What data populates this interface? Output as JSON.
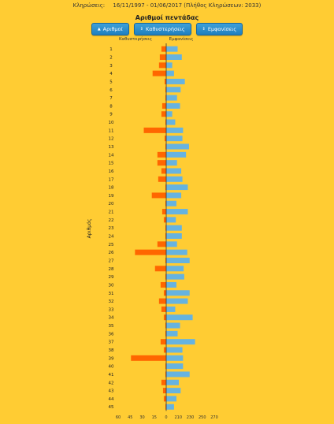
{
  "header": {
    "label": "Κληρώσεις:",
    "range": "16/11/1997 - 01/06/2017",
    "count_text": "(Πλήθος Κληρώσεων: 2033)"
  },
  "title": "Αριθμοί πεντάδας",
  "buttons": [
    {
      "label": "Αριθμοί",
      "icon": "sort-up-icon"
    },
    {
      "label": "Καθυστερήσεις",
      "icon": "sort-icon"
    },
    {
      "label": "Εμφανίσεις",
      "icon": "sort-icon"
    }
  ],
  "colors": {
    "delay": "#ff6600",
    "appear": "#66b3e0",
    "background": "#ffcc33"
  },
  "chart_data": {
    "type": "bar",
    "orientation": "horizontal-butterfly",
    "left_caption": "Καθυστερήσεις",
    "right_caption": "Εμφανίσεις",
    "ylabel": "Αριθμός",
    "x_ticks": [
      "60",
      "45",
      "30",
      "15",
      "0",
      "210",
      "230",
      "250",
      "270"
    ],
    "left_range": [
      0,
      60
    ],
    "right_range": [
      190,
      270
    ],
    "categories": [
      "1",
      "2",
      "3",
      "4",
      "5",
      "6",
      "7",
      "8",
      "9",
      "10",
      "11",
      "12",
      "13",
      "14",
      "15",
      "16",
      "17",
      "18",
      "19",
      "20",
      "21",
      "22",
      "23",
      "24",
      "25",
      "26",
      "27",
      "28",
      "29",
      "30",
      "31",
      "32",
      "33",
      "34",
      "35",
      "36",
      "37",
      "38",
      "39",
      "40",
      "41",
      "42",
      "43",
      "44",
      "45"
    ],
    "series": [
      {
        "name": "Καθυστερήσεις",
        "values": [
          6,
          8,
          9,
          17,
          2,
          1,
          1,
          5,
          6,
          1,
          28,
          2,
          1,
          11,
          11,
          6,
          10,
          1,
          18,
          1,
          5,
          3,
          1,
          1,
          11,
          39,
          1,
          14,
          1,
          7,
          3,
          9,
          6,
          3,
          1,
          1,
          7,
          3,
          44,
          1,
          1,
          6,
          4,
          3,
          1
        ]
      },
      {
        "name": "Εμφανίσεις",
        "values": [
          209,
          216,
          200,
          203,
          221,
          214,
          208,
          213,
          200,
          205,
          218,
          217,
          228,
          223,
          208,
          215,
          217,
          226,
          215,
          207,
          226,
          206,
          216,
          216,
          208,
          225,
          229,
          219,
          220,
          207,
          229,
          226,
          205,
          234,
          213,
          209,
          238,
          217,
          218,
          218,
          229,
          211,
          214,
          207,
          203
        ]
      }
    ]
  }
}
